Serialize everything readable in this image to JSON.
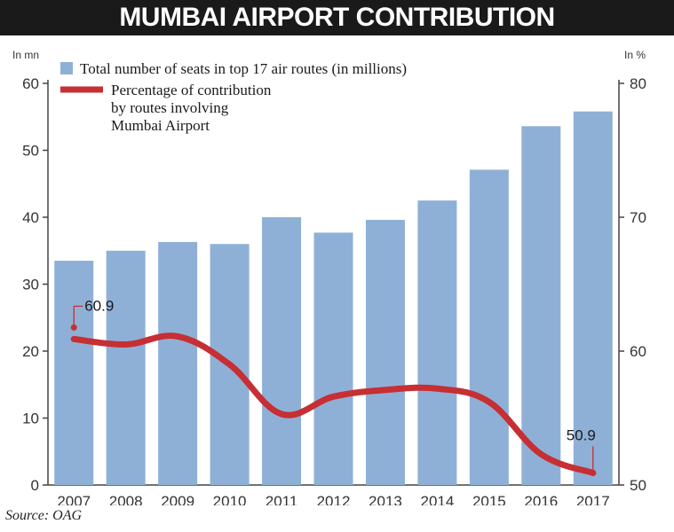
{
  "header": {
    "title": "MUMBAI AIRPORT CONTRIBUTION"
  },
  "source": "Source: OAG",
  "colors": {
    "bar": "#8fb0d6",
    "line": "#c62f33",
    "axis": "#444444",
    "title_bg": "#1a1a1a"
  },
  "chart_data": {
    "type": "bar+line",
    "categories": [
      "2007",
      "2008",
      "2009",
      "2010",
      "2011",
      "2012",
      "2013",
      "2014",
      "2015",
      "2016",
      "2017"
    ],
    "series": [
      {
        "name": "Total number of seats in top 17 air routes (in millions)",
        "type": "bar",
        "axis": "left",
        "values": [
          33.5,
          35,
          36.3,
          36,
          40,
          37.7,
          39.6,
          42.5,
          47.1,
          53.6,
          55.8
        ]
      },
      {
        "name": "Percentage of contribution by routes involving Mumbai Airport",
        "legend_lines": [
          "Percentage of contribution",
          "by routes involving",
          "Mumbai Airport"
        ],
        "type": "line",
        "axis": "right",
        "values": [
          60.9,
          60.5,
          61.1,
          59.0,
          55.3,
          56.6,
          57.1,
          57.2,
          56.2,
          52.3,
          50.9
        ]
      }
    ],
    "left_axis": {
      "unit_label": "In mn",
      "ylim": [
        0,
        60
      ],
      "ticks": [
        0,
        10,
        20,
        30,
        40,
        50,
        60
      ]
    },
    "right_axis": {
      "unit_label": "In %",
      "ylim": [
        50,
        80
      ],
      "ticks": [
        50,
        60,
        70,
        80
      ]
    },
    "annotations": [
      {
        "category": "2007",
        "label": "60.9"
      },
      {
        "category": "2017",
        "label": "50.9"
      }
    ],
    "grid": false,
    "legend_position": "top-left"
  }
}
